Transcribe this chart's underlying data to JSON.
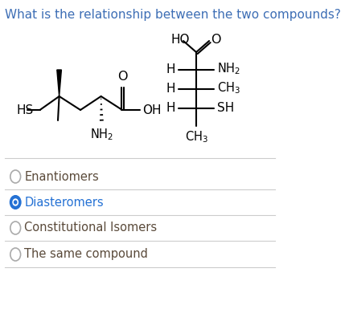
{
  "title": "What is the relationship between the two compounds?",
  "title_color": "#3d6eb5",
  "title_fontsize": 11.0,
  "bg_color": "#ffffff",
  "options": [
    "Enantiomers",
    "Diasteromers",
    "Constitutional Isomers",
    "The same compound"
  ],
  "selected_option": 1,
  "selected_color": "#2471d4",
  "unselected_color": "#5a4a3a",
  "option_fontsize": 10.5,
  "divider_color": "#cccccc"
}
